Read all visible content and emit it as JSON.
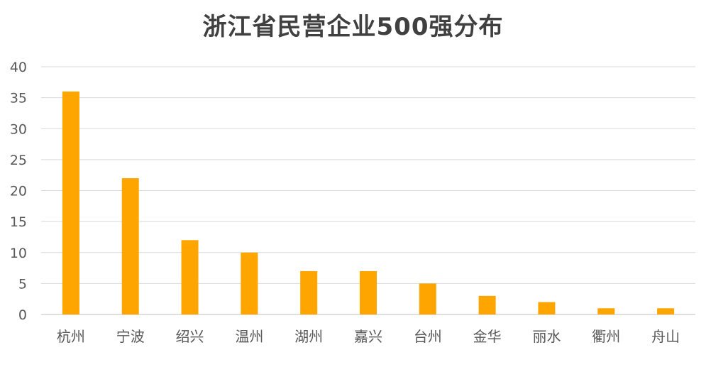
{
  "chart_data": {
    "type": "bar",
    "title": "浙江省民营企业500强分布",
    "xlabel": "",
    "ylabel": "",
    "categories": [
      "杭州",
      "宁波",
      "绍兴",
      "温州",
      "湖州",
      "嘉兴",
      "台州",
      "金华",
      "丽水",
      "衢州",
      "舟山"
    ],
    "values": [
      36,
      22,
      12,
      10,
      7,
      7,
      5,
      3,
      2,
      1,
      1
    ],
    "ylim": [
      0,
      40
    ],
    "yticks": [
      0,
      5,
      10,
      15,
      20,
      25,
      30,
      35,
      40
    ],
    "grid": true,
    "legend": "none",
    "bar_color": "#FFA500"
  }
}
